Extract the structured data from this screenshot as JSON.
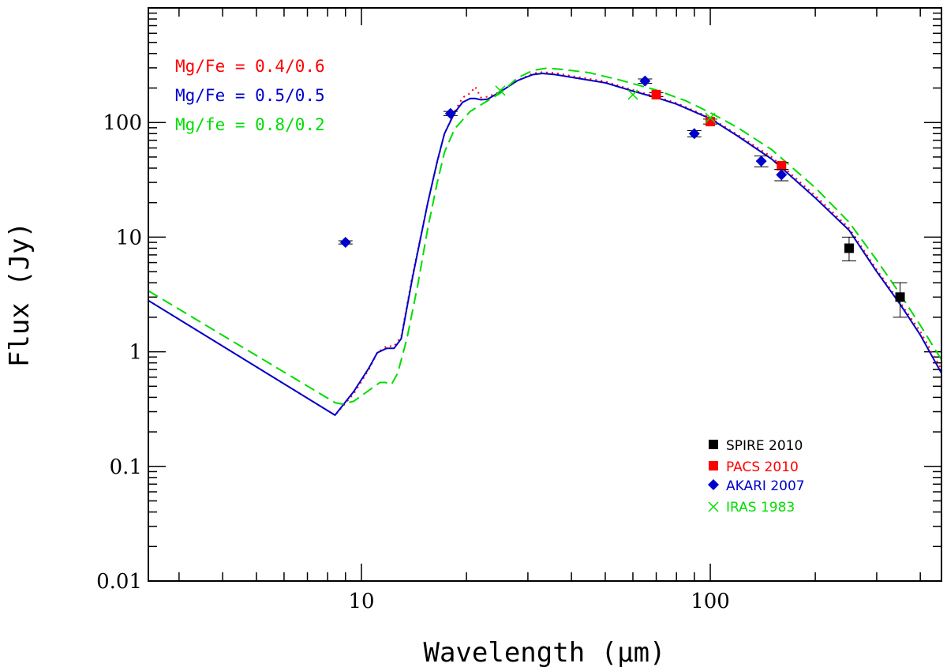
{
  "chart_data": {
    "type": "scatter",
    "title": "",
    "xlabel": "Wavelength (μm)",
    "ylabel": "Flux (Jy)",
    "xscale": "log",
    "yscale": "log",
    "xlim": [
      2.45,
      460
    ],
    "ylim": [
      0.01,
      1000
    ],
    "x_tick_labels": [
      {
        "value": 10,
        "label": "10"
      },
      {
        "value": 100,
        "label": "100"
      }
    ],
    "y_tick_labels": [
      {
        "value": 0.01,
        "label": "0.01"
      },
      {
        "value": 0.1,
        "label": "0.1"
      },
      {
        "value": 1,
        "label": "1"
      },
      {
        "value": 10,
        "label": "10"
      },
      {
        "value": 100,
        "label": "100"
      }
    ],
    "model_annotations": [
      {
        "text": "Mg/Fe = 0.4/0.6",
        "color": "#ff0000"
      },
      {
        "text": "Mg/Fe = 0.5/0.5",
        "color": "#0000cc"
      },
      {
        "text": "Mg/fe = 0.8/0.2",
        "color": "#00dd00"
      }
    ],
    "models": [
      {
        "name": "Mg/Fe = 0.4/0.6",
        "color": "#ff0000",
        "style": "dotted",
        "x": [
          2.45,
          8.4,
          9.5,
          10.5,
          11.1,
          11.8,
          12.4,
          13,
          14,
          15.5,
          16.5,
          17.3,
          18.5,
          19.5,
          20.5,
          21.2,
          22,
          23,
          25,
          28,
          31,
          33,
          36,
          40,
          50,
          60,
          70,
          80,
          100,
          120,
          150,
          200,
          250,
          300,
          350,
          400,
          460
        ],
        "y": [
          2.8,
          0.28,
          0.43,
          0.7,
          0.98,
          1.12,
          1.12,
          1.35,
          4.6,
          20,
          45,
          80,
          125,
          165,
          180,
          205,
          165,
          168,
          185,
          232,
          268,
          275,
          270,
          255,
          228,
          192,
          168,
          148,
          110,
          78,
          50,
          23,
          12,
          5.2,
          2.7,
          1.5,
          0.7
        ]
      },
      {
        "name": "Mg/Fe = 0.5/0.5",
        "color": "#0000cc",
        "style": "solid",
        "x": [
          2.45,
          8.4,
          9.5,
          10.5,
          11.1,
          11.8,
          12.4,
          13,
          14,
          15.5,
          16.5,
          17.3,
          18.5,
          19.5,
          20.5,
          21.2,
          22,
          23,
          25,
          28,
          31,
          33,
          36,
          40,
          50,
          60,
          70,
          80,
          100,
          120,
          150,
          200,
          250,
          300,
          350,
          400,
          460
        ],
        "y": [
          2.8,
          0.28,
          0.45,
          0.72,
          0.98,
          1.07,
          1.07,
          1.3,
          4.4,
          20,
          46,
          80,
          122,
          150,
          162,
          162,
          158,
          160,
          185,
          232,
          262,
          268,
          262,
          248,
          222,
          188,
          165,
          145,
          108,
          76,
          48,
          22,
          11.5,
          5,
          2.6,
          1.4,
          0.65
        ]
      },
      {
        "name": "Mg/fe = 0.8/0.2",
        "color": "#00dd00",
        "style": "dashed",
        "x": [
          2.45,
          8.4,
          8.8,
          9.5,
          10.5,
          11.3,
          11.7,
          12.2,
          12.7,
          13.5,
          14.5,
          15.5,
          16.5,
          17.3,
          18.5,
          20.5,
          23,
          25,
          28,
          31,
          34,
          38,
          45,
          55,
          70,
          85,
          100,
          120,
          150,
          200,
          250,
          300,
          350,
          400,
          460
        ],
        "y": [
          3.4,
          0.36,
          0.35,
          0.37,
          0.46,
          0.54,
          0.54,
          0.52,
          0.65,
          1.3,
          3.8,
          12,
          30,
          55,
          88,
          125,
          155,
          180,
          245,
          285,
          298,
          290,
          272,
          235,
          192,
          155,
          122,
          90,
          58,
          27,
          13.5,
          6.3,
          3.2,
          1.7,
          0.85
        ]
      }
    ],
    "legend": {
      "location": "bottom-right",
      "entries": [
        {
          "label": "SPIRE 2010",
          "marker": "square",
          "marker_color": "#000000",
          "text_color": "#000000"
        },
        {
          "label": "PACS 2010",
          "marker": "square",
          "marker_color": "#ff0000",
          "text_color": "#ff0000"
        },
        {
          "label": "AKARI 2007",
          "marker": "diamond",
          "marker_color": "#0000cc",
          "text_color": "#0000cc"
        },
        {
          "label": "IRAS 1983",
          "marker": "cross",
          "marker_color": "#00dd00",
          "text_color": "#00dd00"
        }
      ]
    },
    "observations": [
      {
        "name": "SPIRE 2010",
        "marker": "square",
        "color": "#000000",
        "points": [
          {
            "x": 250,
            "y": 8,
            "y_low": 6.2,
            "y_high": 10
          },
          {
            "x": 350,
            "y": 3,
            "y_low": 2,
            "y_high": 4
          }
        ]
      },
      {
        "name": "PACS 2010",
        "marker": "square",
        "color": "#ff0000",
        "points": [
          {
            "x": 70,
            "y": 175,
            "y_low": 168,
            "y_high": 182
          },
          {
            "x": 100,
            "y": 102,
            "y_low": 97,
            "y_high": 107
          },
          {
            "x": 160,
            "y": 42,
            "y_low": 39,
            "y_high": 45
          }
        ]
      },
      {
        "name": "AKARI 2007",
        "marker": "diamond",
        "color": "#0000cc",
        "points": [
          {
            "x": 9,
            "y": 9,
            "y_low": 8.7,
            "y_high": 9.3
          },
          {
            "x": 18,
            "y": 120,
            "y_low": 115,
            "y_high": 125
          },
          {
            "x": 65,
            "y": 230,
            "y_low": 220,
            "y_high": 240
          },
          {
            "x": 90,
            "y": 80,
            "y_low": 75,
            "y_high": 85
          },
          {
            "x": 140,
            "y": 46,
            "y_low": 41,
            "y_high": 51
          },
          {
            "x": 160,
            "y": 35,
            "y_low": 31,
            "y_high": 39
          }
        ]
      },
      {
        "name": "IRAS 1983",
        "marker": "cross",
        "color": "#00dd00",
        "points": [
          {
            "x": 25,
            "y": 190
          },
          {
            "x": 60,
            "y": 175
          },
          {
            "x": 100,
            "y": 110
          }
        ]
      }
    ]
  }
}
